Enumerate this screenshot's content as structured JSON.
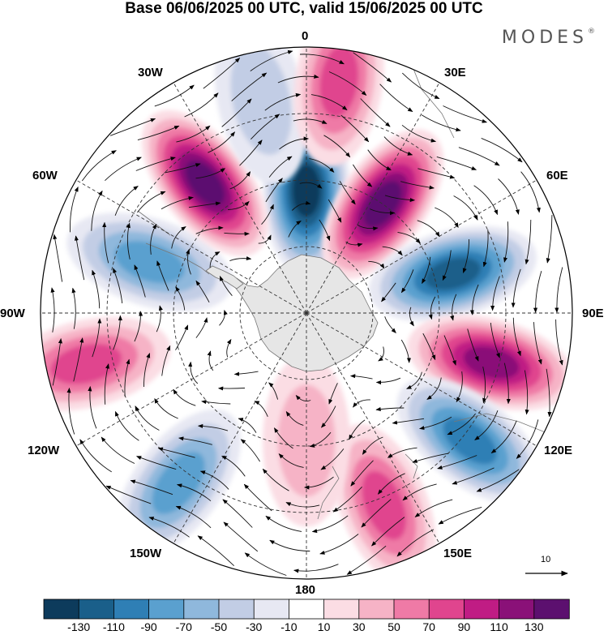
{
  "title": "Base 06/06/2025 00 UTC, valid 15/06/2025 00 UTC",
  "brand": "MODES",
  "brand_mark": "®",
  "longitude_labels": {
    "lon_0": "0",
    "lon_30e": "30E",
    "lon_60e": "60E",
    "lon_90e": "90E",
    "lon_120e": "120E",
    "lon_150e": "150E",
    "lon_180": "180",
    "lon_150w": "150W",
    "lon_120w": "120W",
    "lon_90w": "90W",
    "lon_60w": "60W",
    "lon_30w": "30W"
  },
  "vector_scale_label": "10",
  "colorbar": {
    "colors": [
      "#0d3b5c",
      "#1a5f8a",
      "#2f7fb5",
      "#5aa0cf",
      "#8fb8dc",
      "#c2cde5",
      "#e7e8f3",
      "#ffffff",
      "#fbdde4",
      "#f6b3c6",
      "#ef7aa6",
      "#e0458e",
      "#c01c84",
      "#8a1178",
      "#5c106f"
    ],
    "labels": [
      "-130",
      "-110",
      "-90",
      "-70",
      "-50",
      "-30",
      "-10",
      "10",
      "30",
      "50",
      "70",
      "90",
      "110",
      "130"
    ]
  },
  "anomalies": [
    {
      "name": "neg-anomaly-0",
      "value": -130,
      "lon": 0,
      "colat": 0.46
    },
    {
      "name": "pos-anomaly-30e",
      "value": 130,
      "lon": 35,
      "colat": 0.5
    },
    {
      "name": "neg-anomaly-60e",
      "value": -120,
      "lon": 75,
      "colat": 0.57
    },
    {
      "name": "pos-anomaly-90e",
      "value": 110,
      "lon": 105,
      "colat": 0.72
    },
    {
      "name": "neg-anomaly-120e",
      "value": -100,
      "lon": 128,
      "colat": 0.78
    },
    {
      "name": "pos-anomaly-150e",
      "value": 70,
      "lon": 158,
      "colat": 0.78
    },
    {
      "name": "pos-anomaly-180",
      "value": 40,
      "lon": 180,
      "colat": 0.48
    },
    {
      "name": "neg-anomaly-150w",
      "value": -80,
      "lon": -143,
      "colat": 0.8
    },
    {
      "name": "pos-anomaly-100w",
      "value": 70,
      "lon": -103,
      "colat": 0.85
    },
    {
      "name": "neg-anomaly-80w",
      "value": -70,
      "lon": -72,
      "colat": 0.62
    },
    {
      "name": "pos-anomaly-45w",
      "value": 130,
      "lon": -38,
      "colat": 0.62
    },
    {
      "name": "neg-anomaly-15w",
      "value": -40,
      "lon": -12,
      "colat": 0.82
    },
    {
      "name": "pos-anomaly-5e",
      "value": 70,
      "lon": 8,
      "colat": 0.88
    }
  ]
}
